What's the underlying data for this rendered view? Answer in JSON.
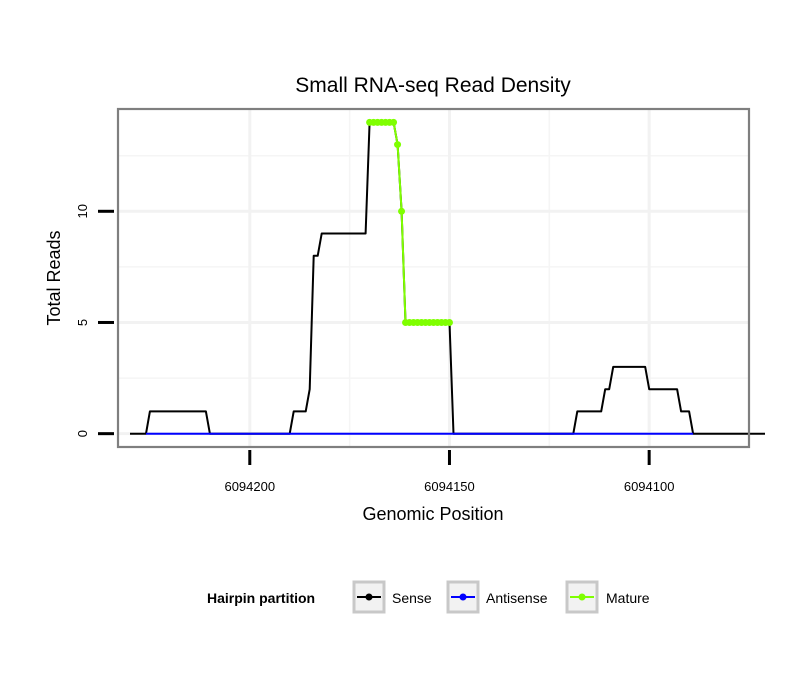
{
  "chart_data": {
    "type": "line",
    "title": "Small RNA-seq Read Density",
    "xlabel": "Genomic Position",
    "ylabel": "Total Reads",
    "x_reversed": true,
    "xlim": [
      6094233,
      6094075
    ],
    "ylim": [
      -0.6,
      14.6
    ],
    "x_ticks": [
      6094200,
      6094150,
      6094100
    ],
    "x_tick_labels": [
      "6094200",
      "6094150",
      "6094100"
    ],
    "y_ticks": [
      0,
      5,
      10
    ],
    "y_tick_labels": [
      "0",
      "5",
      "10"
    ],
    "grid": true,
    "legend": {
      "title": "Hairpin partition",
      "position": "bottom",
      "entries": [
        {
          "name": "Sense",
          "color": "#000000"
        },
        {
          "name": "Antisense",
          "color": "#0000ff"
        },
        {
          "name": "Mature",
          "color": "#7fff00"
        }
      ]
    },
    "series": [
      {
        "name": "Sense",
        "color": "#000000",
        "points": [
          [
            6094230,
            0
          ],
          [
            6094226,
            0
          ],
          [
            6094225,
            1
          ],
          [
            6094218,
            1
          ],
          [
            6094211,
            1
          ],
          [
            6094210,
            0
          ],
          [
            6094190,
            0
          ],
          [
            6094189,
            1
          ],
          [
            6094186,
            1
          ],
          [
            6094185,
            2
          ],
          [
            6094184,
            8
          ],
          [
            6094183,
            8
          ],
          [
            6094182,
            9
          ],
          [
            6094171,
            9
          ],
          [
            6094170,
            14
          ],
          [
            6094164,
            14
          ],
          [
            6094163,
            13
          ],
          [
            6094162,
            10
          ],
          [
            6094161,
            5
          ],
          [
            6094150,
            5
          ],
          [
            6094149,
            0
          ],
          [
            6094119,
            0
          ],
          [
            6094118,
            1
          ],
          [
            6094112,
            1
          ],
          [
            6094111,
            2
          ],
          [
            6094110,
            2
          ],
          [
            6094109,
            3
          ],
          [
            6094101,
            3
          ],
          [
            6094100,
            2
          ],
          [
            6094093,
            2
          ],
          [
            6094092,
            1
          ],
          [
            6094090,
            1
          ],
          [
            6094089,
            0
          ],
          [
            6094071,
            0
          ]
        ]
      },
      {
        "name": "Antisense",
        "color": "#0000ff",
        "points": [
          [
            6094226,
            0
          ],
          [
            6094089,
            0
          ]
        ]
      },
      {
        "name": "Mature",
        "color": "#7fff00",
        "points": [
          [
            6094170,
            14
          ],
          [
            6094169,
            14
          ],
          [
            6094168,
            14
          ],
          [
            6094167,
            14
          ],
          [
            6094166,
            14
          ],
          [
            6094165,
            14
          ],
          [
            6094164,
            14
          ],
          [
            6094163,
            13
          ],
          [
            6094162,
            10
          ],
          [
            6094161,
            5
          ],
          [
            6094160,
            5
          ],
          [
            6094159,
            5
          ],
          [
            6094158,
            5
          ],
          [
            6094157,
            5
          ],
          [
            6094156,
            5
          ],
          [
            6094155,
            5
          ],
          [
            6094154,
            5
          ],
          [
            6094153,
            5
          ],
          [
            6094152,
            5
          ],
          [
            6094151,
            5
          ],
          [
            6094150,
            5
          ]
        ]
      }
    ]
  }
}
